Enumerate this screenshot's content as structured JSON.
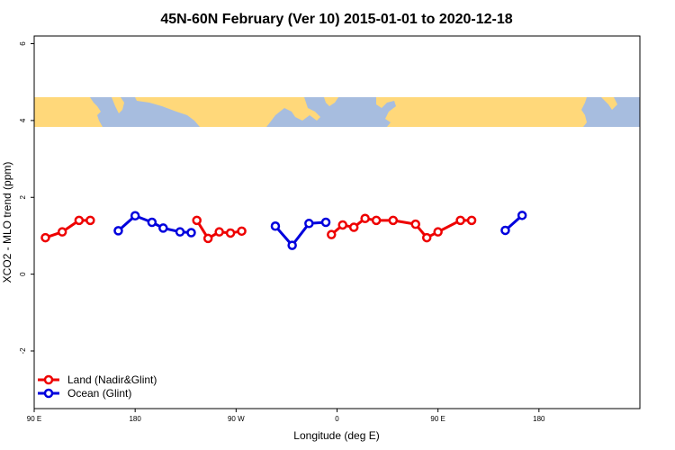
{
  "chart_data": {
    "type": "line",
    "title": "45N-60N February (Ver 10)   2015-01-01 to 2020-12-18",
    "xlabel": "Longitude (deg E)",
    "ylabel": "XCO2 - MLO trend (ppm)",
    "xlim": [
      -90,
      180
    ],
    "ylim": [
      -3.5,
      6.2
    ],
    "x_ticks": [
      {
        "value": -90,
        "label": "90 E"
      },
      {
        "value": -45,
        "label": "180"
      },
      {
        "value": 0,
        "label": "90 W"
      },
      {
        "value": 45,
        "label": "0"
      },
      {
        "value": 90,
        "label": "90 E"
      },
      {
        "value": 135,
        "label": "180"
      }
    ],
    "y_ticks": [
      {
        "value": -2,
        "label": "-2"
      },
      {
        "value": 0,
        "label": "0"
      },
      {
        "value": 2,
        "label": "2"
      },
      {
        "value": 4,
        "label": "4"
      },
      {
        "value": 6,
        "label": "6"
      }
    ],
    "map_strip": {
      "y_range": [
        3.75,
        4.55
      ],
      "ocean_color": "#a7bddf",
      "land_color": "#ffd87a"
    },
    "legend": {
      "position": "bottom-left"
    },
    "series": [
      {
        "name": "Land (Nadir&Glint)",
        "color": "#ee0000",
        "segments": [
          [
            [
              -85,
              0.95
            ],
            [
              -77.5,
              1.1
            ],
            [
              -70,
              1.4
            ],
            [
              -65,
              1.4
            ]
          ],
          [
            [
              -17.5,
              1.4
            ],
            [
              -12.5,
              0.93
            ],
            [
              -7.5,
              1.1
            ],
            [
              -2.5,
              1.07
            ],
            [
              2.5,
              1.12
            ]
          ],
          [
            [
              42.5,
              1.03
            ],
            [
              47.5,
              1.28
            ],
            [
              52.5,
              1.22
            ],
            [
              57.5,
              1.45
            ],
            [
              62.5,
              1.4
            ],
            [
              70,
              1.4
            ],
            [
              80,
              1.3
            ],
            [
              85,
              0.95
            ],
            [
              90,
              1.1
            ],
            [
              100,
              1.4
            ],
            [
              105,
              1.4
            ]
          ]
        ]
      },
      {
        "name": "Ocean (Glint)",
        "color": "#0000dd",
        "segments": [
          [
            [
              -52.5,
              1.13
            ],
            [
              -45,
              1.52
            ],
            [
              -37.5,
              1.35
            ],
            [
              -32.5,
              1.2
            ],
            [
              -25,
              1.1
            ],
            [
              -20,
              1.08
            ]
          ],
          [
            [
              17.5,
              1.25
            ],
            [
              25,
              0.75
            ],
            [
              32.5,
              1.32
            ],
            [
              40,
              1.35
            ]
          ],
          [
            [
              120,
              1.14
            ],
            [
              127.5,
              1.53
            ]
          ]
        ]
      }
    ]
  }
}
